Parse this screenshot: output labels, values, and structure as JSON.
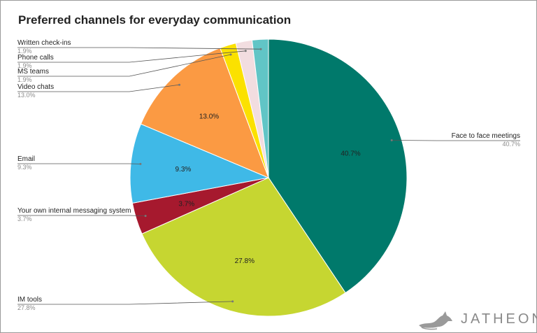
{
  "chart_data": {
    "type": "pie",
    "title": "Preferred channels for everyday communication",
    "series": [
      {
        "categories": [
          "Face to face meetings",
          "IM tools",
          "Your own internal messaging system",
          "Email",
          "Video chats",
          "MS teams",
          "Phone calls",
          "Written check-ins"
        ],
        "values": [
          40.7,
          27.8,
          3.7,
          9.3,
          13.0,
          1.9,
          1.9,
          1.9
        ],
        "value_labels": [
          "40.7%",
          "27.8%",
          "3.7%",
          "9.3%",
          "13.0%",
          "1.9%",
          "1.9%",
          "1.9%"
        ],
        "colors": [
          "#00796b",
          "#c6d631",
          "#a6192e",
          "#3fb9e7",
          "#fb9a43",
          "#fbe100",
          "#f2dde0",
          "#61c5c6"
        ]
      }
    ],
    "inner_labels_shown_for": [
      "Face to face meetings",
      "IM tools",
      "Your own internal messaging system",
      "Email",
      "Video chats"
    ],
    "legend": "callout labels outside the pie",
    "start_angle": "12 o'clock, clockwise"
  },
  "watermark": {
    "text": "JATHEON"
  }
}
